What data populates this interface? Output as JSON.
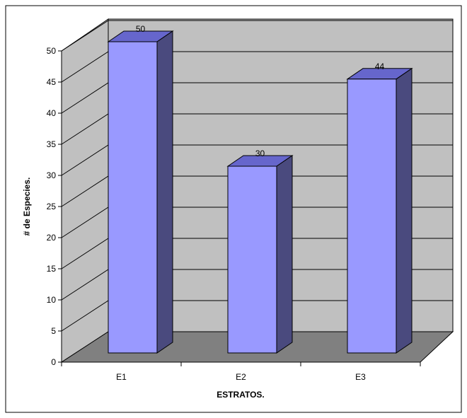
{
  "chart_data": {
    "type": "bar",
    "categories": [
      "E1",
      "E2",
      "E3"
    ],
    "values": [
      50,
      30,
      44
    ],
    "xlabel": "ESTRATOS.",
    "ylabel": "# de Especies.",
    "ylim": [
      0,
      50
    ],
    "ytick_step": 5,
    "data_labels": [
      "50",
      "30",
      "44"
    ],
    "grid": true,
    "legend": "none",
    "colors": {
      "bar_front": "#9999ff",
      "bar_side": "#4a4a7e",
      "bar_top": "#6666cc",
      "back_wall": "#c0c0c0",
      "side_wall": "#c0c0c0",
      "floor": "#808080",
      "border": "#000000"
    }
  }
}
